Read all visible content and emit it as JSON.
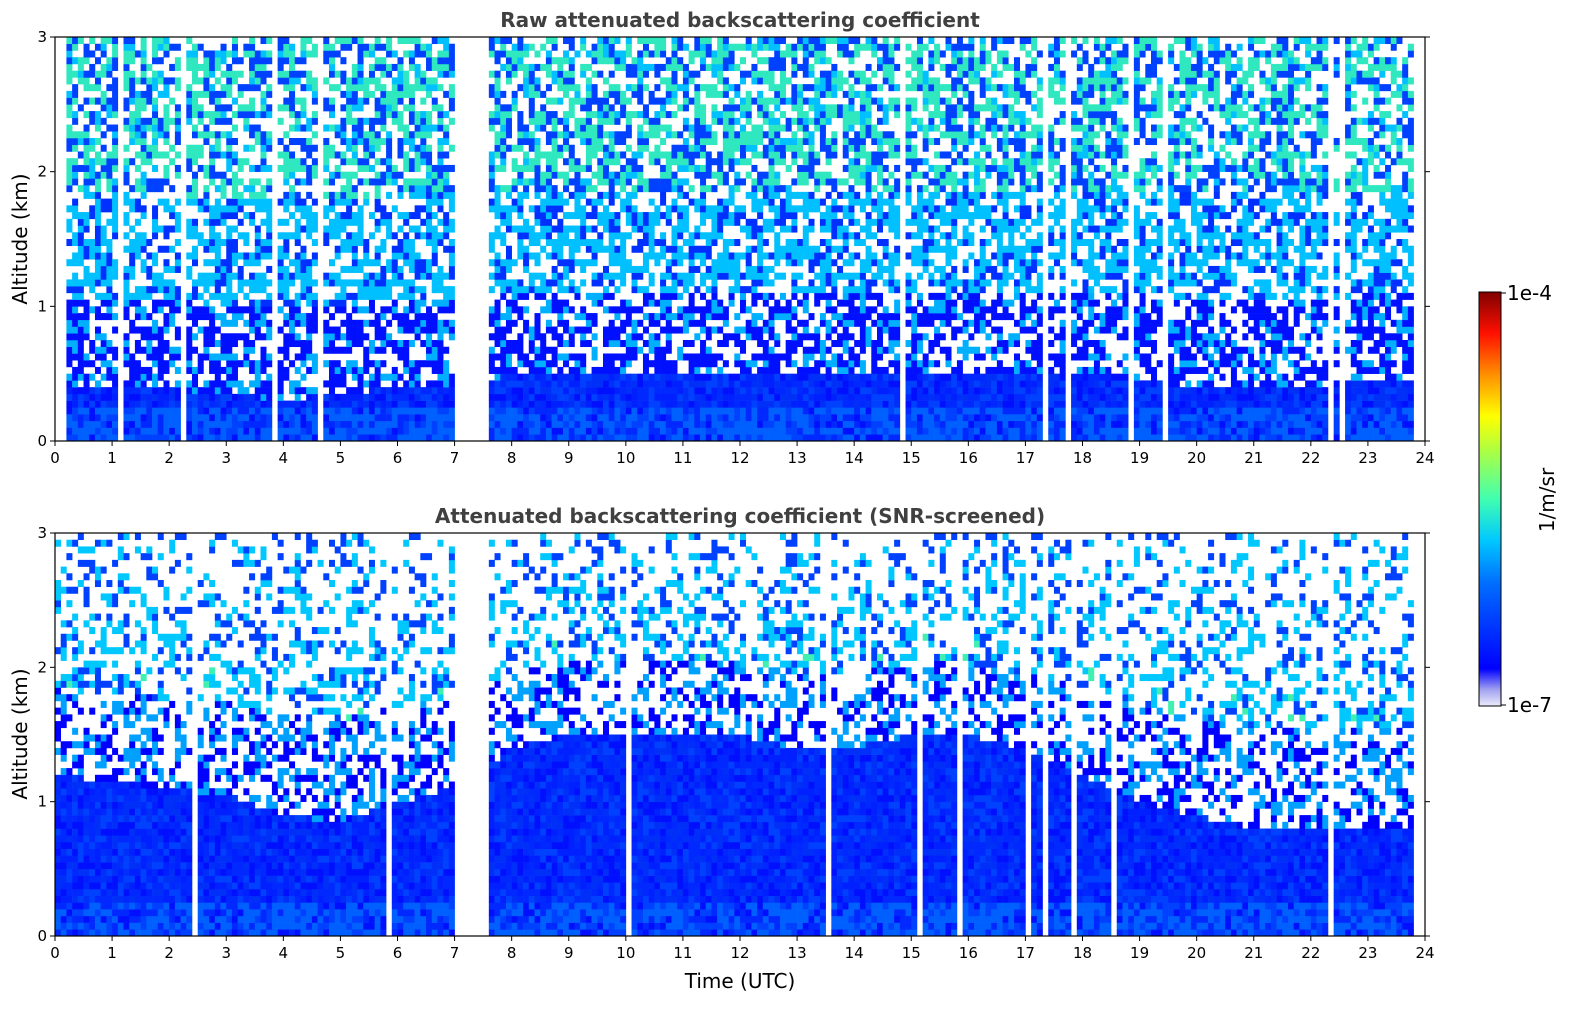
{
  "chart_data": [
    {
      "type": "heatmap",
      "title": "Raw attenuated backscattering coefficient",
      "xlabel": "",
      "ylabel": "Altitude (km)",
      "xlim": [
        0,
        24
      ],
      "ylim": [
        0,
        3
      ],
      "xticks": [
        "0",
        "1",
        "2",
        "3",
        "4",
        "5",
        "6",
        "7",
        "8",
        "9",
        "10",
        "11",
        "12",
        "13",
        "14",
        "15",
        "16",
        "17",
        "18",
        "19",
        "20",
        "21",
        "22",
        "23",
        "24"
      ],
      "yticks": [
        "0",
        "1",
        "2",
        "3"
      ],
      "data_gaps_utc": [
        [
          7.05,
          7.6
        ],
        [
          22.3,
          22.45
        ],
        [
          23.8,
          24
        ]
      ],
      "strong_layer_top_km": [
        0.4,
        0.4,
        0.38,
        0.35,
        0.3,
        0.35,
        0.4,
        0.4,
        0.5,
        0.5,
        0.5,
        0.5,
        0.5,
        0.5,
        0.5,
        0.5,
        0.5,
        0.5,
        0.5,
        0.45,
        0.4,
        0.4,
        0.4,
        0.45,
        0.45
      ]
    },
    {
      "type": "heatmap",
      "title": "Attenuated backscattering coefficient (SNR-screened)",
      "xlabel": "Time (UTC)",
      "ylabel": "Altitude (km)",
      "xlim": [
        0,
        24
      ],
      "ylim": [
        0,
        3
      ],
      "xticks": [
        "0",
        "1",
        "2",
        "3",
        "4",
        "5",
        "6",
        "7",
        "8",
        "9",
        "10",
        "11",
        "12",
        "13",
        "14",
        "15",
        "16",
        "17",
        "18",
        "19",
        "20",
        "21",
        "22",
        "23",
        "24"
      ],
      "yticks": [
        "0",
        "1",
        "2",
        "3"
      ],
      "data_gaps_utc": [
        [
          7.05,
          7.6
        ],
        [
          22.3,
          22.45
        ],
        [
          23.8,
          24
        ]
      ],
      "boundary_layer_top_km": [
        1.2,
        1.15,
        1.1,
        1.05,
        0.9,
        0.85,
        1.0,
        1.1,
        1.4,
        1.5,
        1.5,
        1.5,
        1.5,
        1.4,
        1.4,
        1.5,
        1.5,
        1.4,
        1.2,
        1.0,
        0.9,
        0.8,
        0.8,
        0.8,
        0.8
      ]
    }
  ],
  "colorbar": {
    "label": "1/m/sr",
    "max_label": "1e-4",
    "min_label": "1e-7",
    "scale": "log",
    "range": [
      1e-07,
      0.0001
    ],
    "colormap": [
      "#e8e8f8",
      "#0000ff",
      "#00c8ff",
      "#60ff90",
      "#ffff00",
      "#ff8000",
      "#ff0000",
      "#800000"
    ]
  }
}
